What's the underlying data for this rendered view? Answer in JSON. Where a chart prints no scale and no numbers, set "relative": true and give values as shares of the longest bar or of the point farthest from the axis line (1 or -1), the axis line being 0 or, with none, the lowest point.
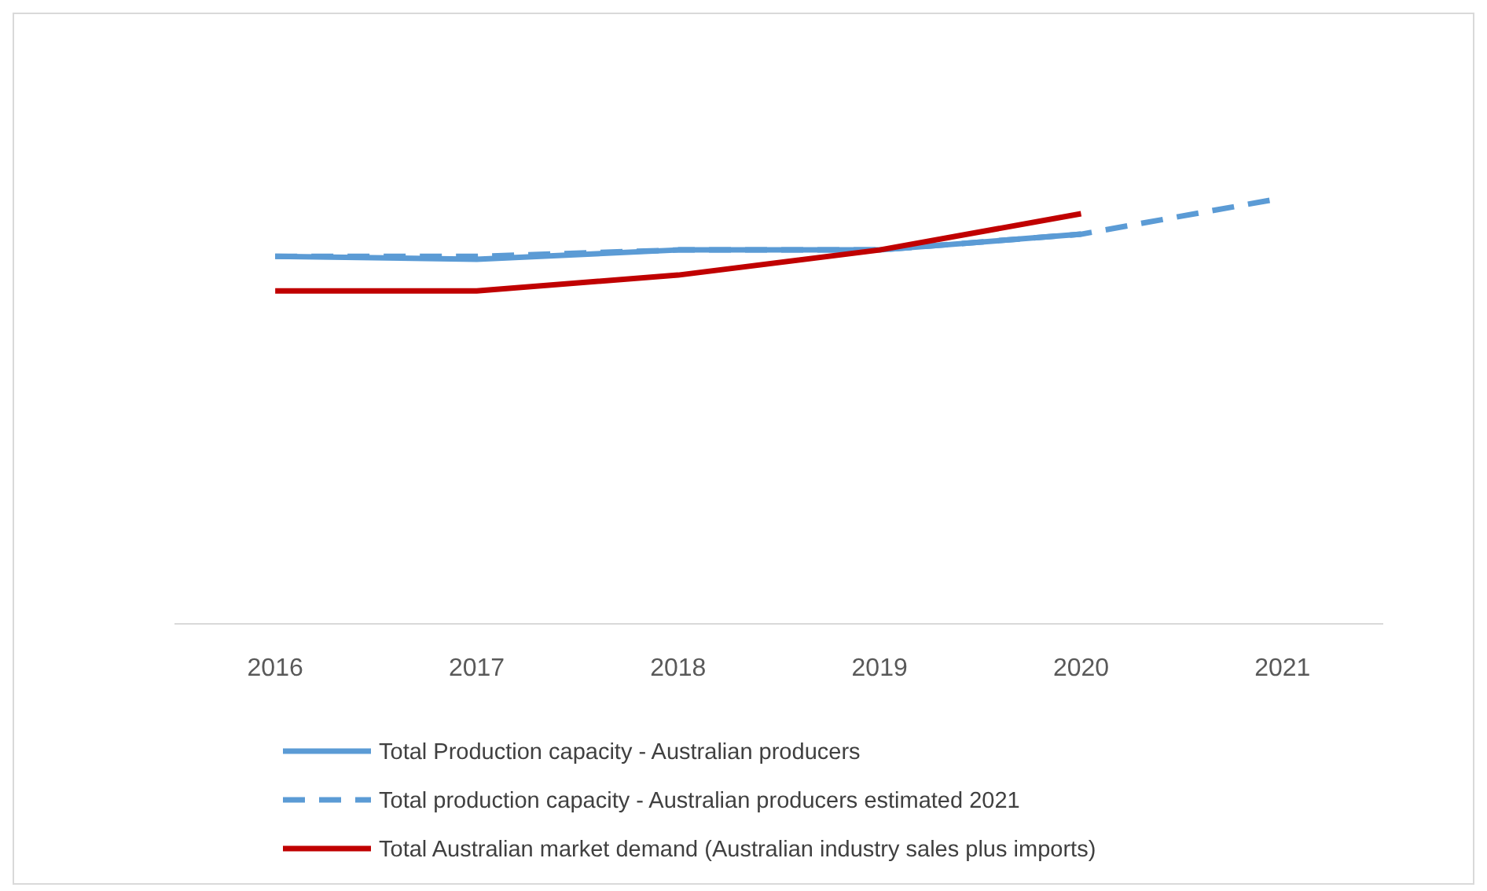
{
  "chart_data": {
    "type": "line",
    "relative": true,
    "categories": [
      "2016",
      "2017",
      "2018",
      "2019",
      "2020",
      "2021"
    ],
    "legend": "bottom",
    "series": [
      {
        "name": "Total Production capacity - Australian producers",
        "color": "#5b9bd5",
        "line_style": "solid",
        "values": [
          0.863,
          0.856,
          0.878,
          0.878,
          0.915,
          null
        ]
      },
      {
        "name": "Total production capacity - Australian producers estimated 2021",
        "color": "#5b9bd5",
        "line_style": "dashed",
        "values": [
          0.863,
          0.863,
          0.878,
          0.878,
          0.915,
          1
        ]
      },
      {
        "name": "Total Australian market demand (Australian industry sales plus imports)",
        "color": "#c00000",
        "line_style": "solid",
        "values": [
          0.782,
          0.782,
          0.819,
          0.878,
          0.963,
          null
        ]
      }
    ]
  }
}
